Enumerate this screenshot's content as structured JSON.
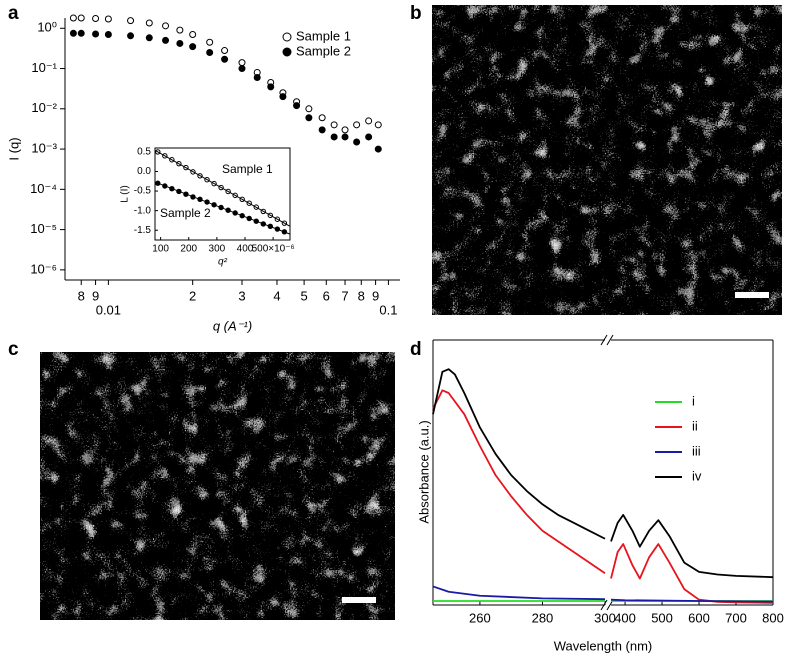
{
  "chart_data": [
    {
      "panel_label": "a",
      "type": "scatter",
      "xscale": "log",
      "yscale": "log",
      "xlabel": "q (A⁻¹)",
      "ylabel": "I (q)",
      "xlim": [
        0.007,
        0.11
      ],
      "ylim": [
        5.6e-07,
        1.8
      ],
      "xticks": [
        {
          "value": 0.008,
          "label": "8"
        },
        {
          "value": 0.009,
          "label": "9"
        },
        0.01,
        {
          "value": 0.02,
          "label": "2"
        },
        {
          "value": 0.03,
          "label": "3"
        },
        {
          "value": 0.04,
          "label": "4"
        },
        {
          "value": 0.05,
          "label": "5"
        },
        {
          "value": 0.06,
          "label": "6"
        },
        {
          "value": 0.07,
          "label": "7"
        },
        {
          "value": 0.08,
          "label": "8"
        },
        {
          "value": 0.09,
          "label": "9"
        },
        0.1
      ],
      "yticks": [
        {
          "value": 1,
          "label": "10⁰"
        },
        {
          "value": 0.1,
          "label": "10⁻¹"
        },
        {
          "value": 0.01,
          "label": "10⁻²"
        },
        {
          "value": 0.001,
          "label": "10⁻³"
        },
        {
          "value": 0.0001,
          "label": "10⁻⁴"
        },
        {
          "value": 1e-05,
          "label": "10⁻⁵"
        },
        {
          "value": 1e-06,
          "label": "10⁻⁶"
        }
      ],
      "legend": "upper right",
      "series": [
        {
          "name": "Sample 1",
          "marker": "open",
          "color": "#000000",
          "x": [
            0.0075,
            0.008,
            0.009,
            0.01,
            0.012,
            0.014,
            0.016,
            0.018,
            0.02,
            0.023,
            0.026,
            0.03,
            0.034,
            0.038,
            0.042,
            0.047,
            0.052,
            0.058,
            0.064,
            0.07,
            0.077,
            0.085,
            0.092
          ],
          "values": [
            1.8,
            1.8,
            1.75,
            1.7,
            1.55,
            1.35,
            1.15,
            0.9,
            0.7,
            0.45,
            0.28,
            0.14,
            0.08,
            0.045,
            0.025,
            0.015,
            0.01,
            0.006,
            0.004,
            0.003,
            0.004,
            0.005,
            0.004
          ]
        },
        {
          "name": "Sample 2",
          "marker": "filled",
          "color": "#000000",
          "x": [
            0.0075,
            0.008,
            0.009,
            0.01,
            0.012,
            0.014,
            0.016,
            0.018,
            0.02,
            0.023,
            0.026,
            0.03,
            0.034,
            0.038,
            0.042,
            0.047,
            0.052,
            0.058,
            0.064,
            0.07,
            0.077,
            0.085,
            0.092
          ],
          "values": [
            0.75,
            0.75,
            0.72,
            0.7,
            0.65,
            0.58,
            0.5,
            0.42,
            0.35,
            0.25,
            0.17,
            0.1,
            0.06,
            0.035,
            0.02,
            0.012,
            0.006,
            0.003,
            0.002,
            0.002,
            0.0015,
            0.002,
            0.001
          ]
        }
      ],
      "inset": {
        "type": "scatter",
        "xlabel": "q²",
        "ylabel": "L (I)",
        "frame": true,
        "xlim": [
          80,
          560
        ],
        "ylim": [
          -1.75,
          0.6
        ],
        "xticks": [
          100,
          200,
          300,
          400,
          {
            "value": 500,
            "label": "500×10⁻⁶"
          }
        ],
        "yticks": [
          0.5,
          {
            "value": 0,
            "label": "0.0"
          },
          -0.5,
          {
            "value": -1,
            "label": "-1.0"
          },
          -1.5
        ],
        "annotations": [
          "Sample 1",
          "Sample 2"
        ],
        "series": [
          {
            "marker": "open",
            "color": "#000000",
            "x": [
              90,
              115,
              140,
              165,
              190,
              215,
              240,
              265,
              290,
              315,
              340,
              365,
              390,
              415,
              440,
              465,
              490,
              515,
              540
            ],
            "values": [
              0.5,
              0.4,
              0.3,
              0.2,
              0.1,
              -0.01,
              -0.11,
              -0.21,
              -0.31,
              -0.41,
              -0.51,
              -0.61,
              -0.71,
              -0.81,
              -0.91,
              -1.02,
              -1.12,
              -1.22,
              -1.32
            ]
          },
          {
            "marker": "filled",
            "color": "#000000",
            "x": [
              90,
              115,
              140,
              165,
              190,
              215,
              240,
              265,
              290,
              315,
              340,
              365,
              390,
              415,
              440,
              465,
              490,
              515,
              540
            ],
            "values": [
              -0.3,
              -0.37,
              -0.44,
              -0.51,
              -0.58,
              -0.65,
              -0.71,
              -0.78,
              -0.85,
              -0.92,
              -0.99,
              -1.06,
              -1.13,
              -1.2,
              -1.27,
              -1.34,
              -1.4,
              -1.47,
              -1.54
            ]
          },
          {
            "style": "line",
            "color": "#000000",
            "x": [
              80,
              560
            ],
            "values": [
              0.54,
              -1.4
            ]
          },
          {
            "style": "line",
            "color": "#000000",
            "x": [
              80,
              560
            ],
            "values": [
              -0.27,
              -1.6
            ]
          }
        ]
      }
    },
    {
      "panel_label": "d",
      "type": "line",
      "xlabel": "Wavelength (nm)",
      "ylabel": "Absorbance (a.u.)",
      "ylim": [
        0,
        100
      ],
      "legend": "upper right",
      "x_segments": [
        {
          "xlim": [
            245,
            300
          ],
          "xticks": [
            260,
            280,
            300
          ]
        },
        {
          "xlim": [
            362,
            800
          ],
          "xticks": [
            400,
            500,
            600,
            700,
            800
          ]
        }
      ],
      "series": [
        {
          "name": "i",
          "color": "#22dd22",
          "x": [
            245,
            300,
            362,
            800
          ],
          "values": [
            1.5,
            1.5,
            1.5,
            1.5
          ]
        },
        {
          "name": "ii",
          "color": "#e8141c",
          "x": [
            245,
            248,
            250,
            255,
            260,
            265,
            270,
            275,
            280,
            285,
            290,
            295,
            300,
            362,
            380,
            395,
            420,
            440,
            465,
            490,
            520,
            560,
            600,
            650,
            700,
            800
          ],
          "values": [
            74,
            81,
            80,
            72,
            60,
            49,
            41,
            34,
            28,
            24,
            20,
            16,
            12,
            10,
            20,
            23,
            15,
            10,
            18,
            23,
            16,
            6,
            2,
            1.2,
            1,
            0.8
          ]
        },
        {
          "name": "iii",
          "color": "#1a1aa8",
          "x": [
            245,
            250,
            260,
            280,
            300,
            362,
            400,
            600,
            800
          ],
          "values": [
            7,
            5,
            3.5,
            2.5,
            2.2,
            2,
            1.8,
            1.5,
            1.3
          ]
        },
        {
          "name": "iv",
          "color": "#000000",
          "x": [
            245,
            248,
            250,
            252,
            255,
            260,
            265,
            270,
            275,
            280,
            285,
            290,
            295,
            300,
            362,
            380,
            395,
            420,
            440,
            465,
            490,
            520,
            560,
            600,
            650,
            700,
            800
          ],
          "values": [
            72,
            88,
            89,
            87,
            80,
            67,
            57,
            49,
            43,
            38,
            34,
            31,
            28,
            25,
            24,
            31,
            34,
            28,
            22,
            28,
            32,
            26,
            16,
            12.5,
            11.5,
            11,
            10.5
          ]
        }
      ]
    }
  ],
  "images": [
    {
      "panel_label": "b"
    },
    {
      "panel_label": "c"
    }
  ]
}
